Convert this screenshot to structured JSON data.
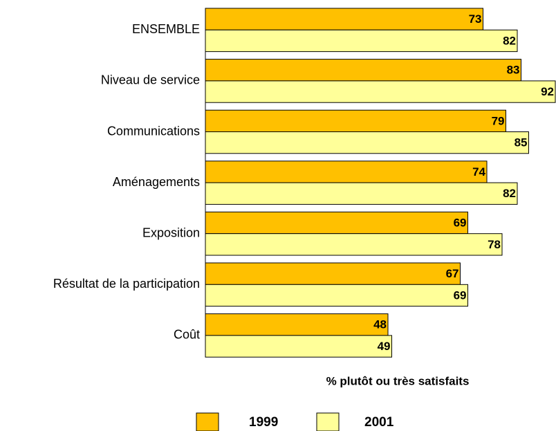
{
  "chart_data": {
    "type": "bar",
    "orientation": "horizontal",
    "categories": [
      "ENSEMBLE",
      "Niveau de service",
      "Communications",
      "Aménagements",
      "Exposition",
      "Résultat de la participation",
      "Coût"
    ],
    "series": [
      {
        "name": "1999",
        "color": "#ffc000",
        "values": [
          73,
          83,
          79,
          74,
          69,
          67,
          48
        ]
      },
      {
        "name": "2001",
        "color": "#ffff99",
        "values": [
          82,
          92,
          85,
          82,
          78,
          69,
          49
        ]
      }
    ],
    "xlabel": "% plutôt ou très satisfaits",
    "xlim": [
      0,
      92
    ],
    "legend": "bottom"
  }
}
